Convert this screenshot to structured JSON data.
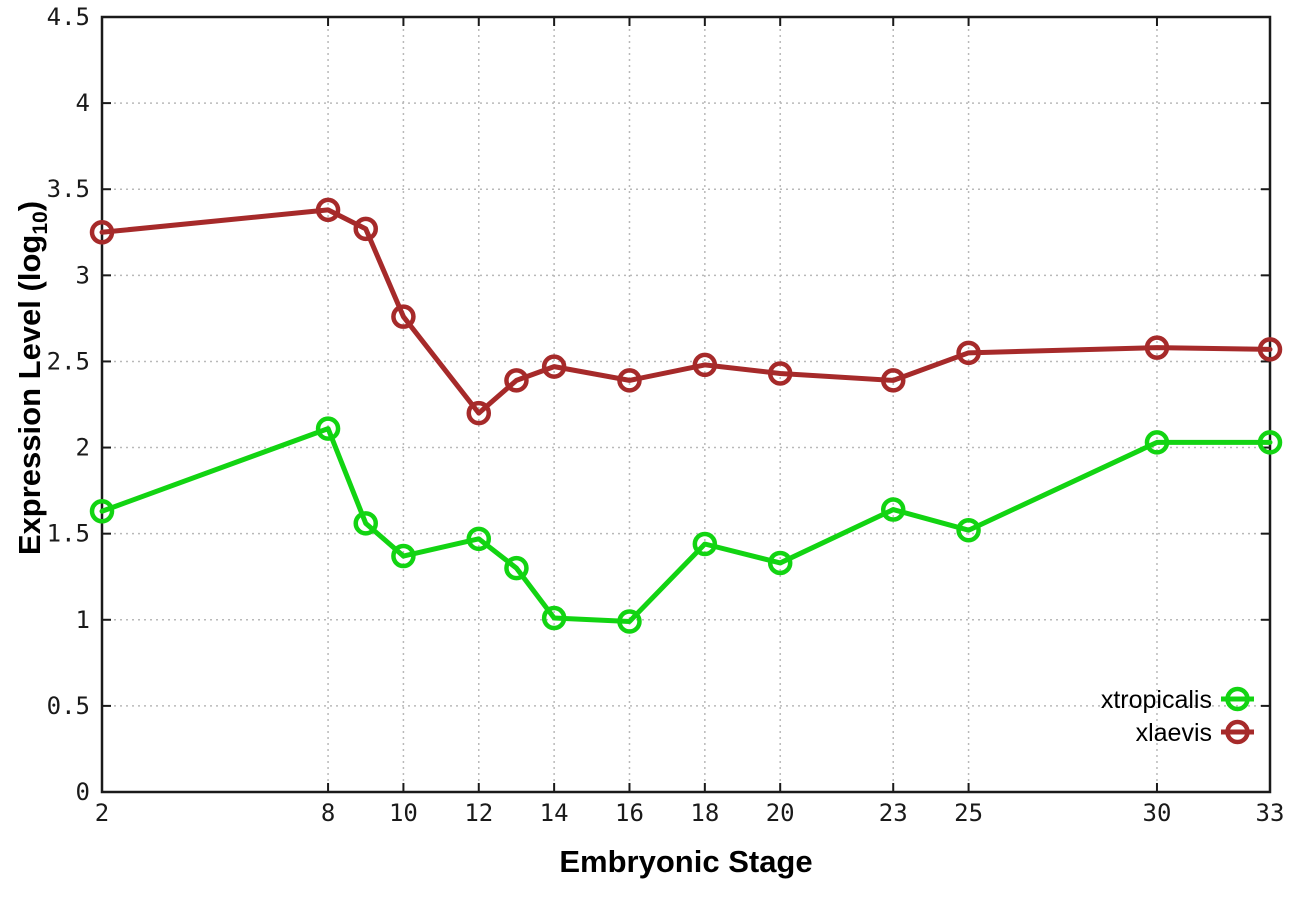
{
  "figure": {
    "background_color": "#ffffff"
  },
  "chart_data": {
    "type": "line",
    "title": "",
    "xlabel": "Embryonic Stage",
    "ylabel": "Expression Level (log10)",
    "ylabel_parts": {
      "pre": "Expression Level (log",
      "sub": "10",
      "post": ")"
    },
    "x": [
      2,
      8,
      9,
      10,
      12,
      13,
      14,
      16,
      18,
      20,
      23,
      25,
      30,
      33
    ],
    "xlim": [
      2,
      33
    ],
    "ylim": [
      0,
      4.5
    ],
    "xtick_values": [
      2,
      8,
      10,
      12,
      14,
      16,
      18,
      20,
      23,
      25,
      30,
      33
    ],
    "xtick_labels": [
      "2",
      "8",
      "10",
      "12",
      "14",
      "16",
      "18",
      "20",
      "23",
      "25",
      "30",
      "33"
    ],
    "ytick_values": [
      0,
      0.5,
      1,
      1.5,
      2,
      2.5,
      3,
      3.5,
      4,
      4.5
    ],
    "ytick_labels": [
      "0",
      "0.5",
      "1",
      "1.5",
      "2",
      "2.5",
      "3",
      "3.5",
      "4",
      "4.5"
    ],
    "grid": true,
    "legend_position": "bottom-right",
    "series": [
      {
        "name": "xtropicalis",
        "color": "#12d412",
        "values": [
          1.63,
          2.11,
          1.56,
          1.37,
          1.47,
          1.3,
          1.01,
          0.99,
          1.44,
          1.33,
          1.64,
          1.52,
          2.03,
          2.03
        ]
      },
      {
        "name": "xlaevis",
        "color": "#a62a2a",
        "values": [
          3.25,
          3.38,
          3.27,
          2.76,
          2.2,
          2.39,
          2.47,
          2.39,
          2.48,
          2.43,
          2.39,
          2.55,
          2.58,
          2.57
        ]
      }
    ],
    "styles": {
      "grid_color": "#b9b9b9",
      "axis_color": "#1a1a1a",
      "tick_label_color": "#1a1a1a"
    }
  }
}
